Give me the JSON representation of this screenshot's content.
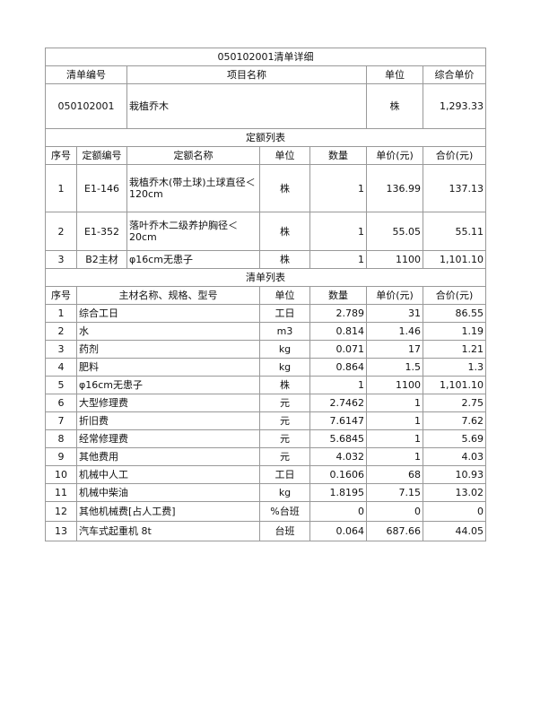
{
  "title": "050102001清单详细",
  "bill_header": {
    "code": "清单编号",
    "name": "项目名称",
    "unit": "单位",
    "price": "综合单价"
  },
  "bill": {
    "code": "050102001",
    "name": "栽植乔木",
    "unit": "株",
    "price": "1,293.33"
  },
  "quota_section": "定额列表",
  "quota_header": [
    "序号",
    "定额编号",
    "定额名称",
    "单位",
    "数量",
    "单价(元)",
    "合价(元)"
  ],
  "quota_rows": [
    [
      "1",
      "E1-146",
      "栽植乔木(带土球)土球直径＜120cm",
      "株",
      "1",
      "136.99",
      "137.13"
    ],
    [
      "2",
      "E1-352",
      "落叶乔木二级养护胸径＜20cm",
      "株",
      "1",
      "55.05",
      "55.11"
    ],
    [
      "3",
      "B2主材",
      "φ16cm无患子",
      "株",
      "1",
      "1100",
      "1,101.10"
    ]
  ],
  "list_section": "清单列表",
  "list_header": [
    "序号",
    "主材名称、规格、型号",
    "单位",
    "数量",
    "单价(元)",
    "合价(元)"
  ],
  "list_rows": [
    [
      "1",
      "综合工日",
      "工日",
      "2.789",
      "31",
      "86.55"
    ],
    [
      "2",
      "水",
      "m3",
      "0.814",
      "1.46",
      "1.19"
    ],
    [
      "3",
      "药剂",
      "kg",
      "0.071",
      "17",
      "1.21"
    ],
    [
      "4",
      "肥料",
      "kg",
      "0.864",
      "1.5",
      "1.3"
    ],
    [
      "5",
      "φ16cm无患子",
      "株",
      "1",
      "1100",
      "1,101.10"
    ],
    [
      "6",
      "大型修理费",
      "元",
      "2.7462",
      "1",
      "2.75"
    ],
    [
      "7",
      "折旧费",
      "元",
      "7.6147",
      "1",
      "7.62"
    ],
    [
      "8",
      "经常修理费",
      "元",
      "5.6845",
      "1",
      "5.69"
    ],
    [
      "9",
      "其他费用",
      "元",
      "4.032",
      "1",
      "4.03"
    ],
    [
      "10",
      "机械中人工",
      "工日",
      "0.1606",
      "68",
      "10.93"
    ],
    [
      "11",
      "机械中柴油",
      "kg",
      "1.8195",
      "7.15",
      "13.02"
    ],
    [
      "12",
      "其他机械费[占人工费]",
      "%台班",
      "0",
      "0",
      "0"
    ],
    [
      "13",
      "汽车式起重机  8t",
      "台班",
      "0.064",
      "687.66",
      "44.05"
    ]
  ]
}
